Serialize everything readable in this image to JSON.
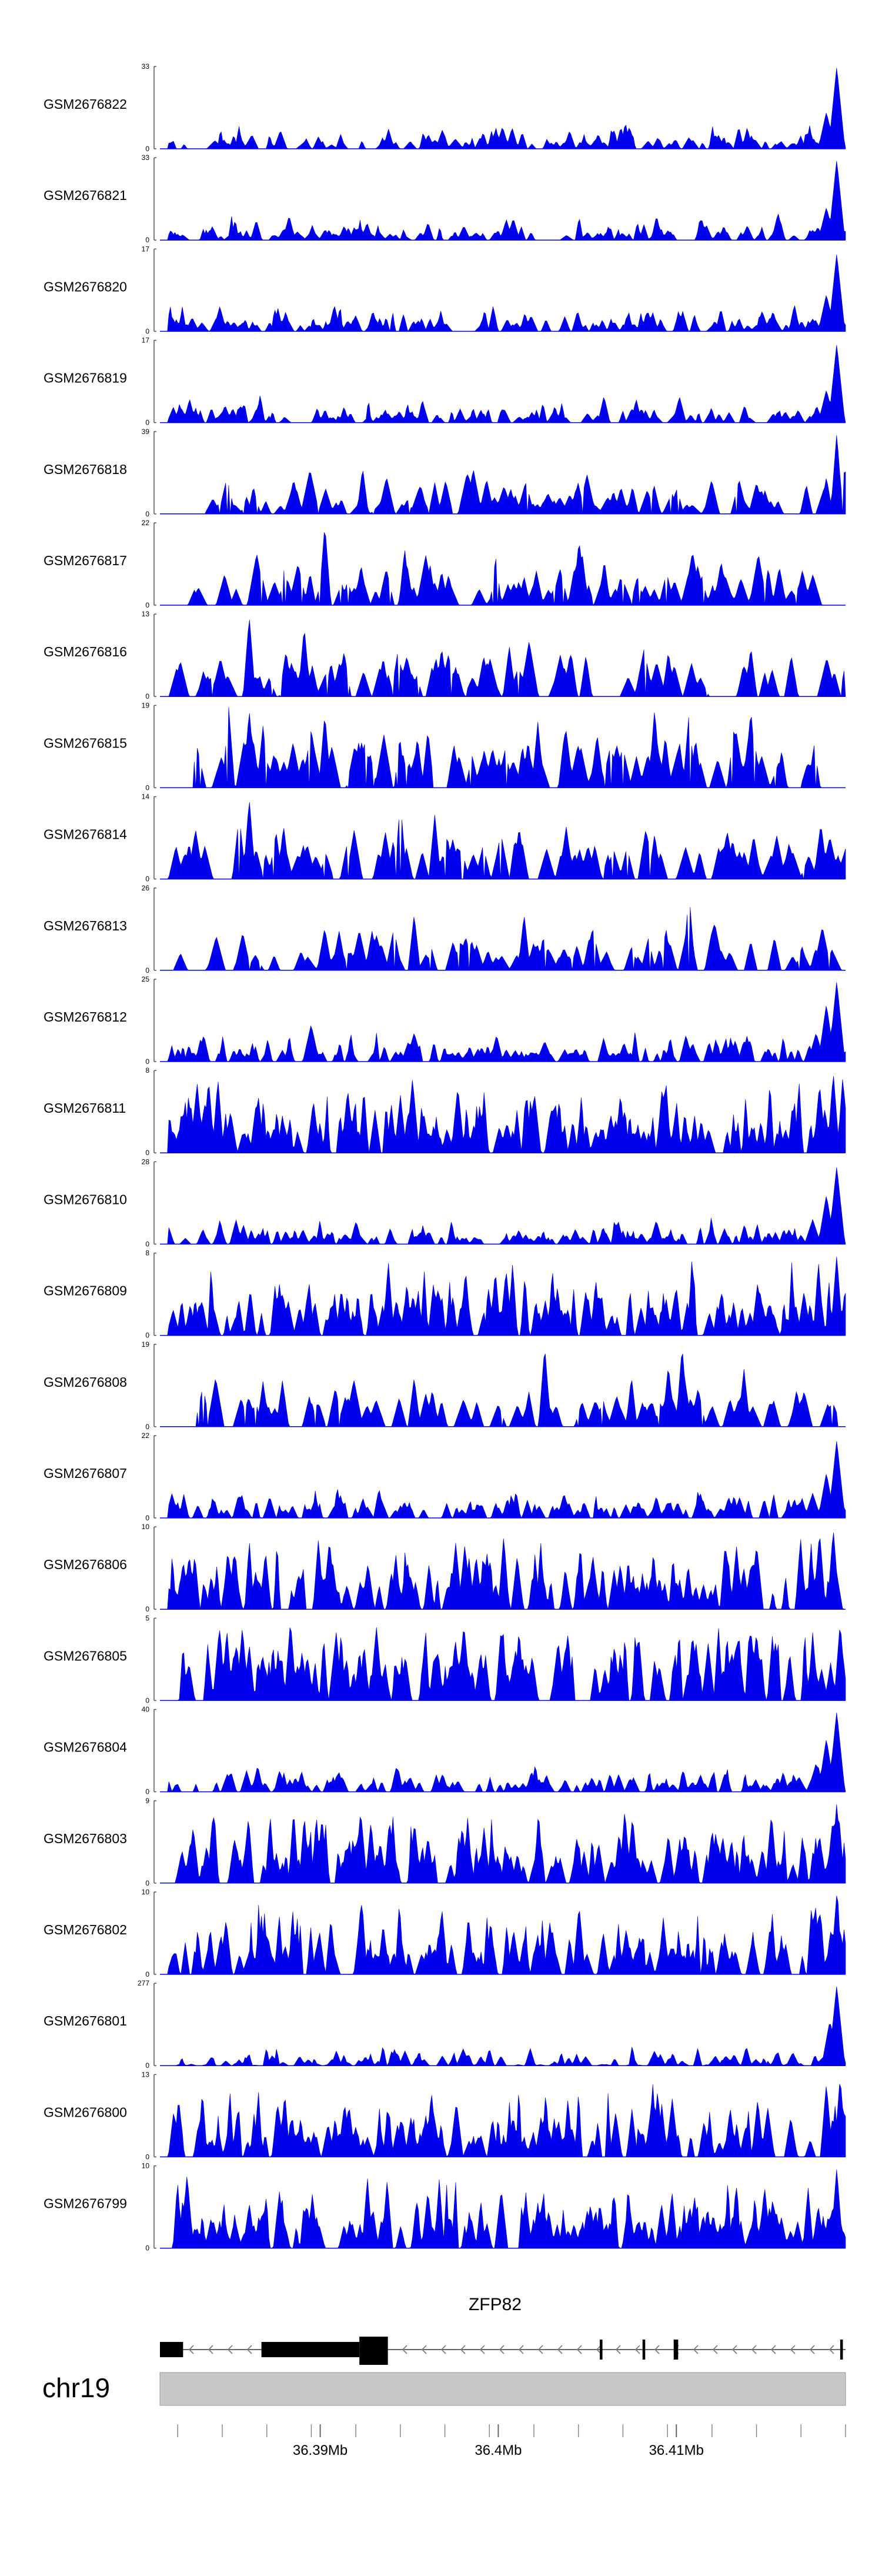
{
  "chart_data": {
    "type": "area",
    "color": "#0000ee",
    "x_axis": {
      "range_mb": [
        36.381,
        36.4195
      ],
      "ticks": [
        {
          "value": 36.39,
          "label": "36.39Mb"
        },
        {
          "value": 36.4,
          "label": "36.4Mb"
        },
        {
          "value": 36.41,
          "label": "36.41Mb"
        }
      ]
    },
    "tracks": [
      {
        "name": "GSM2676822",
        "ymax": "33",
        "max": 33,
        "seed": 1,
        "style": "enrich",
        "start": 0.012,
        "end": 1.0,
        "density": 1.0,
        "baseline": 0.05,
        "peaks": [
          [
            0.08,
            0.1
          ],
          [
            0.21,
            0.08
          ],
          [
            0.43,
            0.12
          ],
          [
            0.62,
            0.08
          ],
          [
            0.985,
            1.0
          ],
          [
            0.97,
            0.45
          ],
          [
            0.95,
            0.12
          ]
        ]
      },
      {
        "name": "GSM2676821",
        "ymax": "33",
        "max": 33,
        "seed": 2,
        "style": "enrich",
        "start": 0.012,
        "end": 1.0,
        "density": 1.0,
        "baseline": 0.05,
        "peaks": [
          [
            0.2,
            0.1
          ],
          [
            0.46,
            0.09
          ],
          [
            0.985,
            0.98
          ],
          [
            0.97,
            0.4
          ],
          [
            0.95,
            0.12
          ]
        ]
      },
      {
        "name": "GSM2676820",
        "ymax": "17",
        "max": 17,
        "seed": 3,
        "style": "enrich",
        "start": 0.012,
        "end": 1.0,
        "density": 1.0,
        "baseline": 0.07,
        "peaks": [
          [
            0.12,
            0.1
          ],
          [
            0.47,
            0.1
          ],
          [
            0.985,
            0.95
          ],
          [
            0.97,
            0.45
          ],
          [
            0.95,
            0.15
          ]
        ]
      },
      {
        "name": "GSM2676819",
        "ymax": "17",
        "max": 17,
        "seed": 4,
        "style": "enrich",
        "start": 0.012,
        "end": 1.0,
        "density": 1.0,
        "baseline": 0.06,
        "peaks": [
          [
            0.09,
            0.12
          ],
          [
            0.985,
            0.96
          ],
          [
            0.97,
            0.4
          ],
          [
            0.955,
            0.15
          ]
        ]
      },
      {
        "name": "GSM2676818",
        "ymax": "39",
        "max": 39,
        "seed": 5,
        "style": "sparse",
        "start": 0.05,
        "end": 1.0,
        "density": 0.45,
        "baseline": 0.1,
        "peaks": [
          [
            0.4,
            0.38
          ],
          [
            0.36,
            0.18
          ],
          [
            0.66,
            0.28
          ],
          [
            0.985,
            0.98
          ],
          [
            0.97,
            0.45
          ]
        ]
      },
      {
        "name": "GSM2676817",
        "ymax": "22",
        "max": 22,
        "seed": 6,
        "style": "sparse",
        "start": 0.012,
        "end": 0.985,
        "density": 0.7,
        "baseline": 0.18,
        "peaks": [
          [
            0.24,
            0.98
          ],
          [
            0.36,
            0.48
          ],
          [
            0.41,
            0.42
          ],
          [
            0.53,
            0.35
          ],
          [
            0.61,
            0.8
          ],
          [
            0.78,
            0.38
          ]
        ]
      },
      {
        "name": "GSM2676816",
        "ymax": "13",
        "max": 13,
        "seed": 7,
        "style": "sparse",
        "start": 0.012,
        "end": 1.0,
        "density": 0.7,
        "baseline": 0.22,
        "peaks": [
          [
            0.13,
            0.98
          ],
          [
            0.21,
            0.85
          ],
          [
            0.41,
            0.6
          ],
          [
            0.62,
            0.5
          ],
          [
            0.74,
            0.55
          ],
          [
            0.86,
            0.6
          ]
        ]
      },
      {
        "name": "GSM2676815",
        "ymax": "19",
        "max": 19,
        "seed": 8,
        "style": "sparse",
        "start": 0.05,
        "end": 0.97,
        "density": 0.55,
        "baseline": 0.3,
        "peaks": [
          [
            0.1,
            0.98
          ],
          [
            0.13,
            0.95
          ],
          [
            0.15,
            0.75
          ],
          [
            0.24,
            0.9
          ],
          [
            0.39,
            0.7
          ],
          [
            0.55,
            0.8
          ],
          [
            0.72,
            0.96
          ],
          [
            0.77,
            0.9
          ],
          [
            0.86,
            0.95
          ]
        ]
      },
      {
        "name": "GSM2676814",
        "ymax": "14",
        "max": 14,
        "seed": 9,
        "style": "sparse",
        "start": 0.012,
        "end": 1.0,
        "density": 0.8,
        "baseline": 0.28,
        "peaks": [
          [
            0.13,
            0.98
          ],
          [
            0.18,
            0.65
          ],
          [
            0.35,
            0.95
          ],
          [
            0.4,
            0.78
          ],
          [
            0.5,
            0.35
          ],
          [
            0.72,
            0.55
          ]
        ]
      },
      {
        "name": "GSM2676813",
        "ymax": "26",
        "max": 26,
        "seed": 10,
        "style": "sparse",
        "start": 0.012,
        "end": 1.0,
        "density": 0.8,
        "baseline": 0.16,
        "peaks": [
          [
            0.37,
            0.68
          ],
          [
            0.53,
            0.68
          ],
          [
            0.77,
            0.95
          ],
          [
            0.55,
            0.3
          ],
          [
            0.44,
            0.35
          ]
        ]
      },
      {
        "name": "GSM2676812",
        "ymax": "25",
        "max": 25,
        "seed": 11,
        "style": "enrich",
        "start": 0.012,
        "end": 1.0,
        "density": 1.0,
        "baseline": 0.1,
        "peaks": [
          [
            0.22,
            0.45
          ],
          [
            0.37,
            0.35
          ],
          [
            0.56,
            0.25
          ],
          [
            0.985,
            0.98
          ],
          [
            0.97,
            0.7
          ],
          [
            0.955,
            0.35
          ]
        ]
      },
      {
        "name": "GSM2676811",
        "ymax": "8",
        "max": 8,
        "seed": 12,
        "style": "dense",
        "start": 0.012,
        "end": 1.0,
        "density": 1.0,
        "baseline": 0.22,
        "peaks": [
          [
            0.07,
            0.55
          ],
          [
            0.14,
            0.6
          ],
          [
            0.35,
            0.7
          ],
          [
            0.54,
            0.6
          ],
          [
            0.73,
            0.55
          ],
          [
            0.98,
            0.98
          ],
          [
            0.96,
            0.85
          ]
        ]
      },
      {
        "name": "GSM2676810",
        "ymax": "28",
        "max": 28,
        "seed": 13,
        "style": "enrich",
        "start": 0.012,
        "end": 1.0,
        "density": 1.0,
        "baseline": 0.07,
        "peaks": [
          [
            0.27,
            0.12
          ],
          [
            0.985,
            0.95
          ],
          [
            0.97,
            0.6
          ],
          [
            0.95,
            0.3
          ]
        ]
      },
      {
        "name": "GSM2676809",
        "ymax": "8",
        "max": 8,
        "seed": 14,
        "style": "dense",
        "start": 0.012,
        "end": 1.0,
        "density": 1.0,
        "baseline": 0.22,
        "peaks": [
          [
            0.18,
            0.45
          ],
          [
            0.48,
            0.45
          ],
          [
            0.62,
            0.55
          ],
          [
            0.87,
            0.65
          ],
          [
            0.985,
            0.98
          ],
          [
            0.96,
            0.6
          ]
        ]
      },
      {
        "name": "GSM2676808",
        "ymax": "19",
        "max": 19,
        "seed": 15,
        "style": "sparse",
        "start": 0.05,
        "end": 0.985,
        "density": 0.75,
        "baseline": 0.22,
        "peaks": [
          [
            0.37,
            0.6
          ],
          [
            0.56,
            0.98
          ],
          [
            0.76,
            0.98
          ],
          [
            0.74,
            0.75
          ],
          [
            0.85,
            0.7
          ],
          [
            0.15,
            0.55
          ]
        ]
      },
      {
        "name": "GSM2676807",
        "ymax": "22",
        "max": 22,
        "seed": 16,
        "style": "enrich",
        "start": 0.012,
        "end": 1.0,
        "density": 1.0,
        "baseline": 0.1,
        "peaks": [
          [
            0.985,
            0.95
          ],
          [
            0.97,
            0.55
          ],
          [
            0.95,
            0.3
          ],
          [
            0.93,
            0.18
          ]
        ]
      },
      {
        "name": "GSM2676806",
        "ymax": "10",
        "max": 10,
        "seed": 17,
        "style": "dense",
        "start": 0.012,
        "end": 1.0,
        "density": 1.0,
        "baseline": 0.22,
        "peaks": [
          [
            0.36,
            0.6
          ],
          [
            0.52,
            0.65
          ],
          [
            0.67,
            0.55
          ],
          [
            0.86,
            0.55
          ],
          [
            0.98,
            0.98
          ],
          [
            0.96,
            0.95
          ]
        ]
      },
      {
        "name": "GSM2676805",
        "ymax": "5",
        "max": 5,
        "seed": 18,
        "style": "dense",
        "start": 0.012,
        "end": 1.0,
        "density": 1.0,
        "baseline": 0.35,
        "peaks": [
          [
            0.12,
            0.9
          ],
          [
            0.19,
            0.98
          ],
          [
            0.43,
            0.75
          ],
          [
            0.58,
            0.7
          ],
          [
            0.78,
            0.72
          ],
          [
            0.99,
            0.95
          ]
        ]
      },
      {
        "name": "GSM2676804",
        "ymax": "40",
        "max": 40,
        "seed": 19,
        "style": "enrich",
        "start": 0.012,
        "end": 1.0,
        "density": 1.0,
        "baseline": 0.08,
        "peaks": [
          [
            0.985,
            0.98
          ],
          [
            0.97,
            0.65
          ],
          [
            0.955,
            0.35
          ],
          [
            0.93,
            0.18
          ]
        ]
      },
      {
        "name": "GSM2676803",
        "ymax": "9",
        "max": 9,
        "seed": 20,
        "style": "dense",
        "start": 0.012,
        "end": 1.0,
        "density": 1.0,
        "baseline": 0.22,
        "peaks": [
          [
            0.44,
            0.7
          ],
          [
            0.74,
            0.6
          ],
          [
            0.89,
            0.85
          ],
          [
            0.985,
            0.98
          ],
          [
            0.96,
            0.6
          ]
        ]
      },
      {
        "name": "GSM2676802",
        "ymax": "10",
        "max": 10,
        "seed": 21,
        "style": "dense",
        "start": 0.012,
        "end": 1.0,
        "density": 1.0,
        "baseline": 0.22,
        "peaks": [
          [
            0.61,
            0.85
          ],
          [
            0.53,
            0.45
          ],
          [
            0.96,
            0.8
          ],
          [
            0.985,
            0.98
          ]
        ]
      },
      {
        "name": "GSM2676801",
        "ymax": "277",
        "max": 277,
        "seed": 22,
        "style": "enrich",
        "start": 0.012,
        "end": 1.0,
        "density": 1.0,
        "baseline": 0.006,
        "peaks": [
          [
            0.985,
            0.98
          ],
          [
            0.975,
            0.55
          ],
          [
            0.965,
            0.1
          ]
        ]
      },
      {
        "name": "GSM2676800",
        "ymax": "13",
        "max": 13,
        "seed": 23,
        "style": "dense",
        "start": 0.012,
        "end": 1.0,
        "density": 1.0,
        "baseline": 0.18,
        "peaks": [
          [
            0.4,
            0.45
          ],
          [
            0.58,
            0.45
          ],
          [
            0.83,
            0.6
          ],
          [
            0.87,
            0.7
          ],
          [
            0.97,
            0.9
          ],
          [
            0.99,
            0.98
          ]
        ]
      },
      {
        "name": "GSM2676799",
        "ymax": "10",
        "max": 10,
        "seed": 24,
        "style": "dense",
        "start": 0.012,
        "end": 1.0,
        "density": 1.0,
        "baseline": 0.2,
        "peaks": [
          [
            0.13,
            0.55
          ],
          [
            0.39,
            0.7
          ],
          [
            0.55,
            0.55
          ],
          [
            0.73,
            0.55
          ],
          [
            0.88,
            0.75
          ],
          [
            0.985,
            0.98
          ]
        ]
      }
    ],
    "gene": {
      "name": "ZFP82",
      "strand": "-",
      "range_mb": [
        36.381,
        36.4195
      ],
      "exons_mb": [
        [
          36.381,
          36.3823
        ],
        [
          36.3867,
          36.3922
        ],
        [
          36.3922,
          36.3938
        ],
        [
          36.4057,
          36.40585
        ],
        [
          36.4081,
          36.40825
        ],
        [
          36.40985,
          36.4101
        ],
        [
          36.4192,
          36.41935
        ]
      ]
    },
    "chromosome": "chr19"
  }
}
